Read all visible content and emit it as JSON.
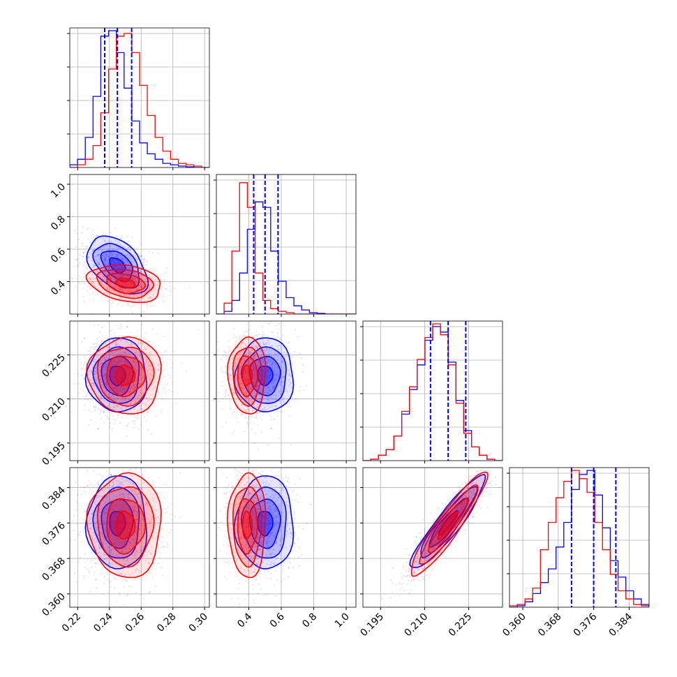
{
  "colors": {
    "series_a": "#0000ff",
    "series_b": "#ff0000",
    "grid": "#b0b0b0",
    "frame": "#000000"
  },
  "chart_data": {
    "type": "corner",
    "title": "",
    "grid": true,
    "parameters": [
      {
        "range": [
          0.215,
          0.303
        ],
        "ticks": [
          "0.22",
          "0.24",
          "0.26",
          "0.28",
          "0.30"
        ]
      },
      {
        "range": [
          0.2,
          1.06
        ],
        "ticks": [
          "0.4",
          "0.6",
          "0.8",
          "1.0"
        ]
      },
      {
        "range": [
          0.189,
          0.2365
        ],
        "ticks": [
          "0.195",
          "0.210",
          "0.225"
        ]
      },
      {
        "range": [
          0.357,
          0.3885
        ],
        "ticks": [
          "0.360",
          "0.368",
          "0.376",
          "0.384"
        ]
      }
    ],
    "series": [
      {
        "color": "#0000ff",
        "quantiles": [
          [
            0.237,
            0.245,
            0.254
          ],
          [
            0.43,
            0.5,
            0.58
          ],
          [
            0.212,
            0.218,
            0.224
          ],
          [
            0.371,
            0.376,
            0.381
          ]
        ],
        "hist": [
          [
            0.02,
            0.06,
            0.22,
            0.52,
            0.96,
            1.0,
            0.84,
            0.58,
            0.34,
            0.18,
            0.1,
            0.06,
            0.03,
            0.02,
            0.01,
            0.005,
            0.0,
            0.0
          ],
          [
            0.0,
            0.02,
            0.1,
            0.3,
            0.62,
            0.82,
            0.78,
            0.46,
            0.24,
            0.12,
            0.06,
            0.03,
            0.01,
            0.005,
            0.0,
            0.0,
            0.0,
            0.0
          ],
          [
            0.0,
            0.01,
            0.04,
            0.08,
            0.18,
            0.34,
            0.52,
            0.7,
            0.88,
            0.98,
            0.94,
            0.72,
            0.44,
            0.22,
            0.1,
            0.04,
            0.01,
            0.0
          ],
          [
            0.0,
            0.01,
            0.04,
            0.1,
            0.18,
            0.28,
            0.44,
            0.62,
            0.86,
            0.97,
            1.0,
            0.82,
            0.58,
            0.34,
            0.22,
            0.12,
            0.06,
            0.02
          ]
        ],
        "mean": [
          0.245,
          0.5,
          0.218,
          0.376
        ],
        "sd": [
          0.009,
          0.085,
          0.006,
          0.005
        ],
        "corr": [
          [
            1,
            -0.45,
            0,
            0
          ],
          [
            -0.45,
            1,
            0,
            0
          ],
          [
            0,
            0,
            1,
            0.92
          ],
          [
            0,
            0,
            0.92,
            1
          ]
        ]
      },
      {
        "color": "#ff0000",
        "hist": [
          [
            0.0,
            0.02,
            0.06,
            0.16,
            0.4,
            0.72,
            0.96,
            0.98,
            0.84,
            0.6,
            0.38,
            0.22,
            0.12,
            0.06,
            0.03,
            0.02,
            0.01,
            0.0
          ],
          [
            0.0,
            0.08,
            0.46,
            0.96,
            0.78,
            0.3,
            0.1,
            0.04,
            0.02,
            0.01,
            0.0,
            0.0,
            0.0,
            0.0,
            0.0,
            0.0,
            0.0,
            0.0
          ],
          [
            0.0,
            0.01,
            0.04,
            0.08,
            0.18,
            0.36,
            0.54,
            0.74,
            0.9,
            1.0,
            0.92,
            0.7,
            0.42,
            0.2,
            0.1,
            0.04,
            0.01,
            0.0
          ],
          [
            0.01,
            0.02,
            0.06,
            0.14,
            0.42,
            0.62,
            0.8,
            0.92,
            1.0,
            0.94,
            0.84,
            0.62,
            0.42,
            0.24,
            0.12,
            0.06,
            0.02,
            0.01
          ]
        ],
        "mean": [
          0.25,
          0.39,
          0.218,
          0.3755
        ],
        "sd": [
          0.011,
          0.055,
          0.0062,
          0.0056
        ],
        "corr": [
          [
            1,
            -0.25,
            0,
            0
          ],
          [
            -0.25,
            1,
            0,
            0
          ],
          [
            0,
            0,
            1,
            0.93
          ],
          [
            0,
            0,
            0.93,
            1
          ]
        ]
      }
    ]
  }
}
